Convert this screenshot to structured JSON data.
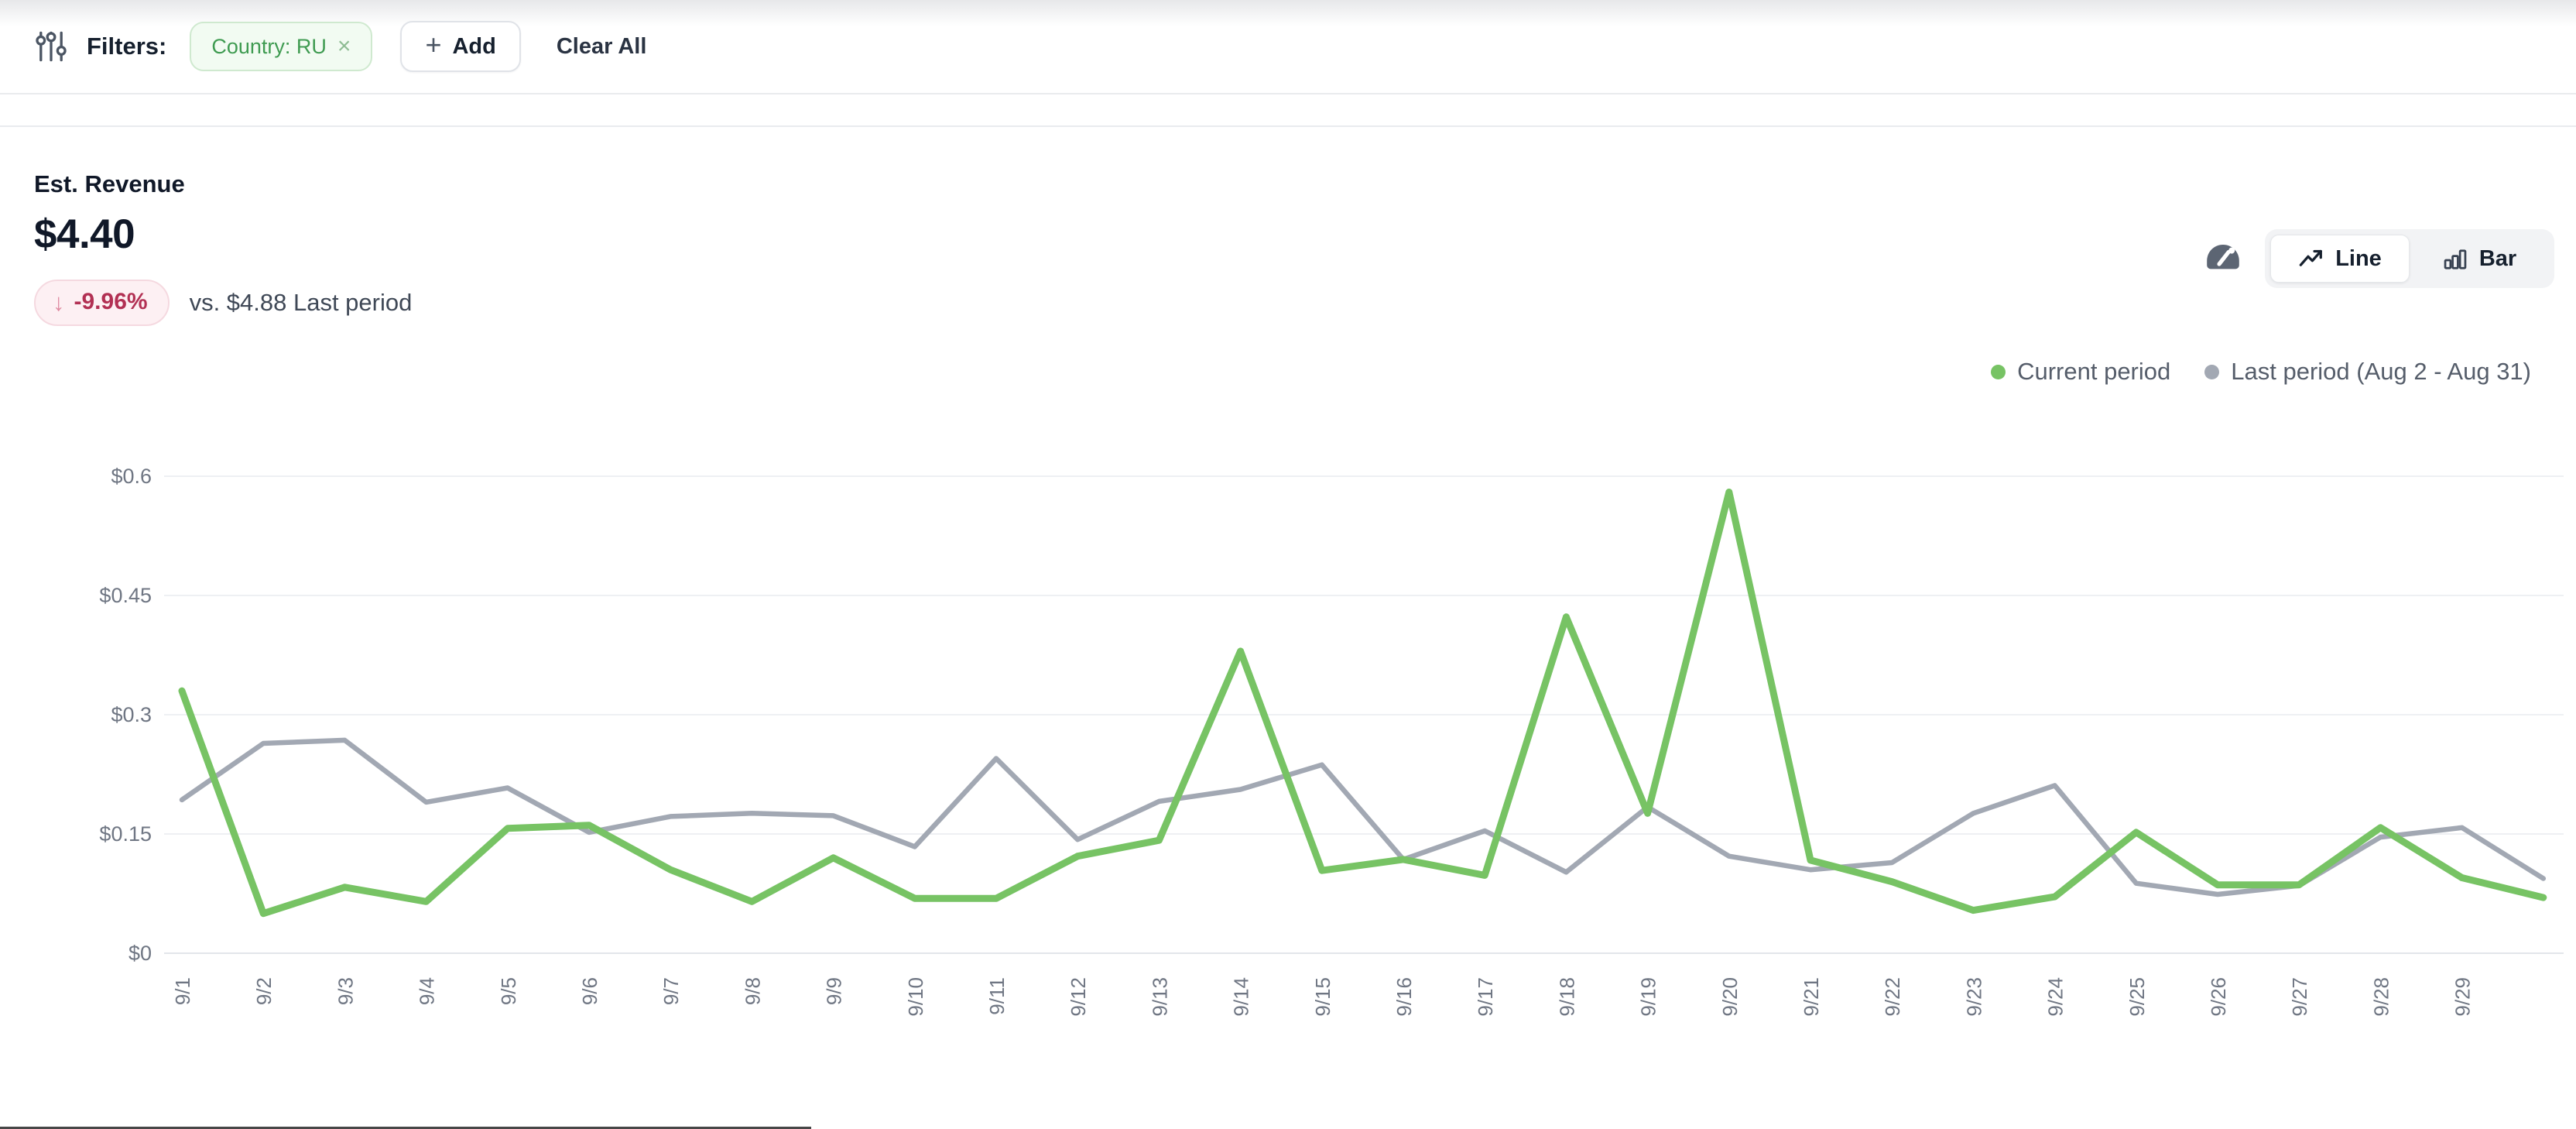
{
  "filters_bar": {
    "label": "Filters:",
    "chip": {
      "text": "Country: RU",
      "remove_icon": "×"
    },
    "add_button": {
      "icon": "+",
      "label": "Add"
    },
    "clear_all_label": "Clear All"
  },
  "metric": {
    "title": "Est. Revenue",
    "value": "$4.40",
    "change_badge": {
      "arrow": "↓",
      "text": "-9.96%",
      "direction": "down",
      "text_color": "#b23053",
      "bg_color": "#fdf0f3"
    },
    "comparison": "vs. $4.88 Last period"
  },
  "view_toggle": {
    "options": [
      {
        "label": "Line",
        "active": true
      },
      {
        "label": "Bar",
        "active": false
      }
    ]
  },
  "legend": [
    {
      "label": "Current period",
      "color": "#77c364"
    },
    {
      "label": "Last period (Aug 2 - Aug 31)",
      "color": "#a2a8b3"
    }
  ],
  "chart_data": {
    "type": "line",
    "title": "Est. Revenue",
    "xlabel": "",
    "ylabel": "",
    "ylim": [
      0,
      0.6
    ],
    "grid": true,
    "legend_position": "top-right",
    "y_ticks": [
      "$0",
      "$0.15",
      "$0.3",
      "$0.45",
      "$0.6"
    ],
    "x_labels": [
      "9/1",
      "9/2",
      "9/3",
      "9/4",
      "9/5",
      "9/6",
      "9/7",
      "9/8",
      "9/9",
      "9/10",
      "9/11",
      "9/12",
      "9/13",
      "9/14",
      "9/15",
      "9/16",
      "9/17",
      "9/18",
      "9/19",
      "9/20",
      "9/21",
      "9/22",
      "9/23",
      "9/24",
      "9/25",
      "9/26",
      "9/27",
      "9/28",
      "9/29",
      ""
    ],
    "series": [
      {
        "name": "Current period",
        "color": "#77c364",
        "values": [
          0.33,
          0.05,
          0.083,
          0.065,
          0.157,
          0.161,
          0.105,
          0.065,
          0.12,
          0.069,
          0.069,
          0.122,
          0.142,
          0.38,
          0.104,
          0.118,
          0.098,
          0.423,
          0.176,
          0.58,
          0.117,
          0.09,
          0.054,
          0.071,
          0.152,
          0.086,
          0.086,
          0.158,
          0.095,
          0.07
        ]
      },
      {
        "name": "Last period (Aug 2 - Aug 31)",
        "color": "#a2a8b3",
        "values": [
          0.193,
          0.264,
          0.268,
          0.19,
          0.208,
          0.152,
          0.172,
          0.176,
          0.173,
          0.134,
          0.245,
          0.143,
          0.191,
          0.206,
          0.237,
          0.118,
          0.154,
          0.102,
          0.184,
          0.122,
          0.105,
          0.114,
          0.176,
          0.211,
          0.088,
          0.074,
          0.085,
          0.146,
          0.158,
          0.094
        ]
      }
    ]
  }
}
